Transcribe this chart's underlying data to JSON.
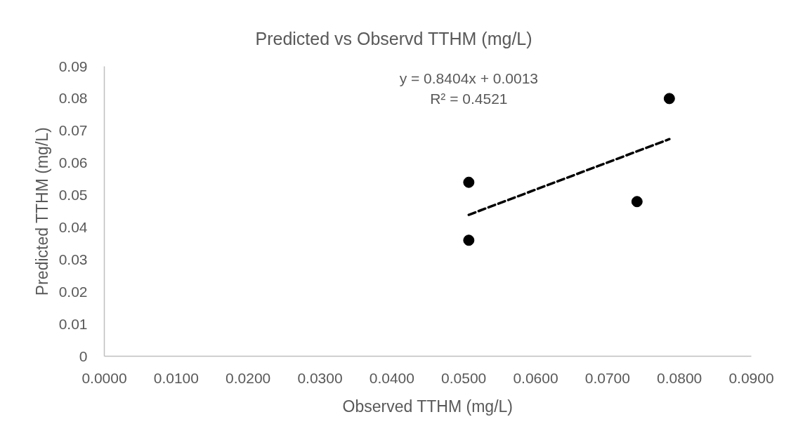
{
  "chart_data": {
    "type": "scatter",
    "title": "Predicted vs Observd TTHM (mg/L)",
    "xlabel": "Observed TTHM (mg/L)",
    "ylabel": "Predicted TTHM (mg/L)",
    "marker": "circle",
    "series": [
      {
        "color": "#000000",
        "x": [
          0.0507,
          0.0507,
          0.0741,
          0.0786
        ],
        "values": [
          0.054,
          0.036,
          0.048,
          0.08
        ]
      },
      {
        "type": "line",
        "color": "#000000",
        "marker": "none",
        "line_style": "dashed",
        "x": [
          0.0507,
          0.0786
        ],
        "values": [
          0.0439,
          0.0674
        ]
      }
    ],
    "xlim": [
      0,
      0.09
    ],
    "xticks": [
      {
        "value": 0,
        "label": "0.0000"
      },
      {
        "value": 0.01,
        "label": "0.0100"
      },
      {
        "value": 0.02,
        "label": "0.0200"
      },
      {
        "value": 0.03,
        "label": "0.0300"
      },
      {
        "value": 0.04,
        "label": "0.0400"
      },
      {
        "value": 0.05,
        "label": "0.0500"
      },
      {
        "value": 0.06,
        "label": "0.0600"
      },
      {
        "value": 0.07,
        "label": "0.0700"
      },
      {
        "value": 0.08,
        "label": "0.0800"
      },
      {
        "value": 0.09,
        "label": "0.0900"
      }
    ],
    "ylim": [
      0,
      0.09
    ],
    "yticks": [
      0,
      0.01,
      0.02,
      0.03,
      0.04,
      0.05,
      0.06,
      0.07,
      0.08,
      0.09
    ],
    "annotations": [
      "y = 0.8404x + 0.0013",
      "R² = 0.4521"
    ]
  }
}
